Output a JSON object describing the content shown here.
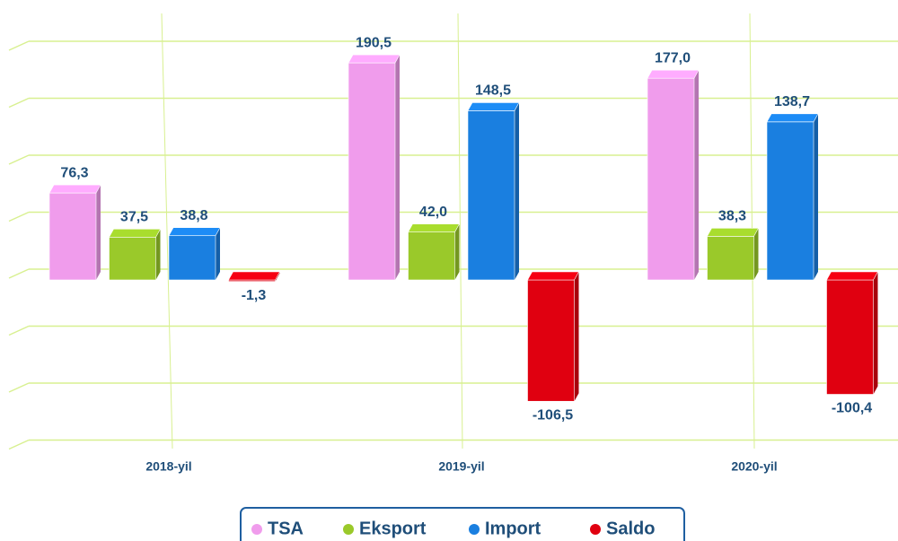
{
  "chart_data": {
    "type": "bar",
    "categories": [
      "2018-yil",
      "2019-yil",
      "2020-yil"
    ],
    "series": [
      {
        "name": "TSA",
        "color": "#f09cec",
        "values": [
          76.3,
          190.5,
          177.0
        ],
        "value_labels": [
          "76,3",
          "190,5",
          "177,0"
        ]
      },
      {
        "name": "Eksport",
        "color": "#9ac92a",
        "values": [
          37.5,
          42.0,
          38.3
        ],
        "value_labels": [
          "37,5",
          "42,0",
          "38,3"
        ]
      },
      {
        "name": "Import",
        "color": "#1a7fe0",
        "values": [
          38.8,
          148.5,
          138.7
        ],
        "value_labels": [
          "38,8",
          "148,5",
          "138,7"
        ]
      },
      {
        "name": "Saldo",
        "color": "#e00010",
        "values": [
          -1.3,
          -106.5,
          -100.4
        ],
        "value_labels": [
          "-1,3",
          "-106,5",
          "-100,4"
        ]
      }
    ],
    "ylim": [
      -150,
      200
    ],
    "yticks": [
      -150,
      -100,
      -50,
      0,
      50,
      100,
      150,
      200
    ],
    "grid": true,
    "legend": "bottom"
  }
}
